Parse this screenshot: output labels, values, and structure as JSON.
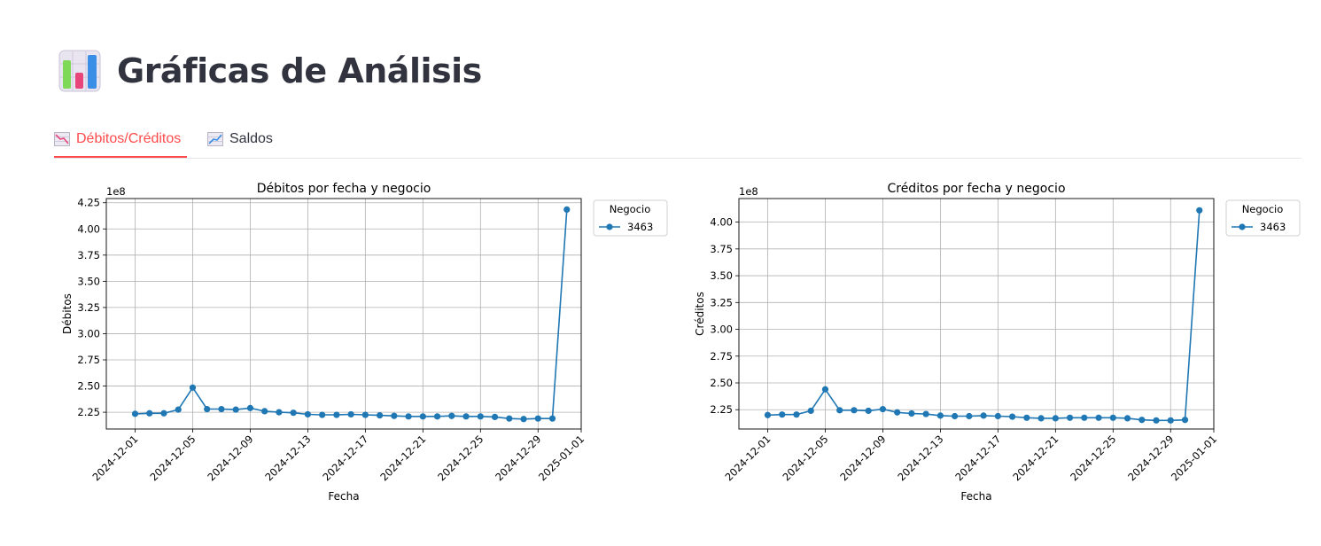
{
  "page": {
    "title": "Gráficas de Análisis",
    "title_icon": "bar-chart-icon"
  },
  "tabs": [
    {
      "label": "Débitos/Créditos",
      "icon": "chart-decreasing-icon",
      "active": true
    },
    {
      "label": "Saldos",
      "icon": "chart-increasing-icon",
      "active": false
    }
  ],
  "colors": {
    "accent": "#ff4b4b",
    "series": "#1f77b4",
    "grid": "#b0b0b0",
    "text": "#31333f"
  },
  "chart_data": [
    {
      "type": "line",
      "title": "Débitos por fecha y negocio",
      "xlabel": "Fecha",
      "ylabel": "Débitos",
      "y_offset_text": "1e8",
      "x_ticks": [
        "2024-12-01",
        "2024-12-05",
        "2024-12-09",
        "2024-12-13",
        "2024-12-17",
        "2024-12-21",
        "2024-12-25",
        "2024-12-29",
        "2025-01-01"
      ],
      "x_range": [
        "2024-11-29",
        "2025-01-01"
      ],
      "ylim": [
        2.09,
        4.29
      ],
      "y_ticks": [
        "2.25",
        "2.50",
        "2.75",
        "3.00",
        "3.25",
        "3.50",
        "3.75",
        "4.00",
        "4.25"
      ],
      "grid": true,
      "legend": {
        "title": "Negocio",
        "placement": "outside-right"
      },
      "series": [
        {
          "name": "3463",
          "x": [
            "2024-12-01",
            "2024-12-02",
            "2024-12-03",
            "2024-12-04",
            "2024-12-05",
            "2024-12-06",
            "2024-12-07",
            "2024-12-08",
            "2024-12-09",
            "2024-12-10",
            "2024-12-11",
            "2024-12-12",
            "2024-12-13",
            "2024-12-14",
            "2024-12-15",
            "2024-12-16",
            "2024-12-17",
            "2024-12-18",
            "2024-12-19",
            "2024-12-20",
            "2024-12-21",
            "2024-12-22",
            "2024-12-23",
            "2024-12-24",
            "2024-12-25",
            "2024-12-26",
            "2024-12-27",
            "2024-12-28",
            "2024-12-29",
            "2024-12-30",
            "2024-12-31"
          ],
          "values": [
            2.235,
            2.24,
            2.24,
            2.275,
            2.485,
            2.28,
            2.28,
            2.275,
            2.29,
            2.26,
            2.25,
            2.245,
            2.23,
            2.225,
            2.225,
            2.23,
            2.225,
            2.22,
            2.215,
            2.21,
            2.21,
            2.21,
            2.215,
            2.21,
            2.21,
            2.205,
            2.19,
            2.185,
            2.19,
            2.19,
            4.185
          ]
        }
      ]
    },
    {
      "type": "line",
      "title": "Créditos por fecha y negocio",
      "xlabel": "Fecha",
      "ylabel": "Créditos",
      "y_offset_text": "1e8",
      "x_ticks": [
        "2024-12-01",
        "2024-12-05",
        "2024-12-09",
        "2024-12-13",
        "2024-12-17",
        "2024-12-21",
        "2024-12-25",
        "2024-12-29",
        "2025-01-01"
      ],
      "x_range": [
        "2024-11-29",
        "2025-01-01"
      ],
      "ylim": [
        2.07,
        4.22
      ],
      "y_ticks": [
        "2.25",
        "2.50",
        "2.75",
        "3.00",
        "3.25",
        "3.50",
        "3.75",
        "4.00"
      ],
      "grid": true,
      "legend": {
        "title": "Negocio",
        "placement": "outside-right"
      },
      "series": [
        {
          "name": "3463",
          "x": [
            "2024-12-01",
            "2024-12-02",
            "2024-12-03",
            "2024-12-04",
            "2024-12-05",
            "2024-12-06",
            "2024-12-07",
            "2024-12-08",
            "2024-12-09",
            "2024-12-10",
            "2024-12-11",
            "2024-12-12",
            "2024-12-13",
            "2024-12-14",
            "2024-12-15",
            "2024-12-16",
            "2024-12-17",
            "2024-12-18",
            "2024-12-19",
            "2024-12-20",
            "2024-12-21",
            "2024-12-22",
            "2024-12-23",
            "2024-12-24",
            "2024-12-25",
            "2024-12-26",
            "2024-12-27",
            "2024-12-28",
            "2024-12-29",
            "2024-12-30",
            "2024-12-31"
          ],
          "values": [
            2.2,
            2.205,
            2.205,
            2.24,
            2.44,
            2.245,
            2.245,
            2.24,
            2.255,
            2.225,
            2.215,
            2.21,
            2.195,
            2.19,
            2.19,
            2.195,
            2.19,
            2.185,
            2.175,
            2.17,
            2.17,
            2.175,
            2.175,
            2.175,
            2.175,
            2.17,
            2.155,
            2.15,
            2.15,
            2.155,
            4.11
          ]
        }
      ]
    }
  ]
}
